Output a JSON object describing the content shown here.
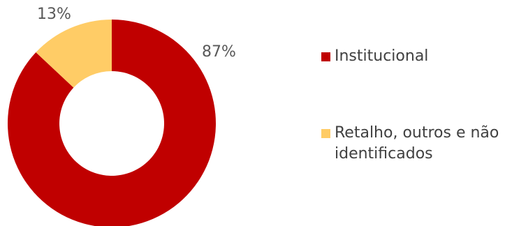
{
  "chart_data": {
    "type": "pie",
    "donut": true,
    "categories": [
      "Institucional",
      "Retalho, outros e não identificados"
    ],
    "values": [
      87,
      13
    ],
    "value_labels": [
      "87%",
      "13%"
    ],
    "colors": [
      "#C00000",
      "#FFCC66"
    ],
    "legend_position": "right"
  }
}
